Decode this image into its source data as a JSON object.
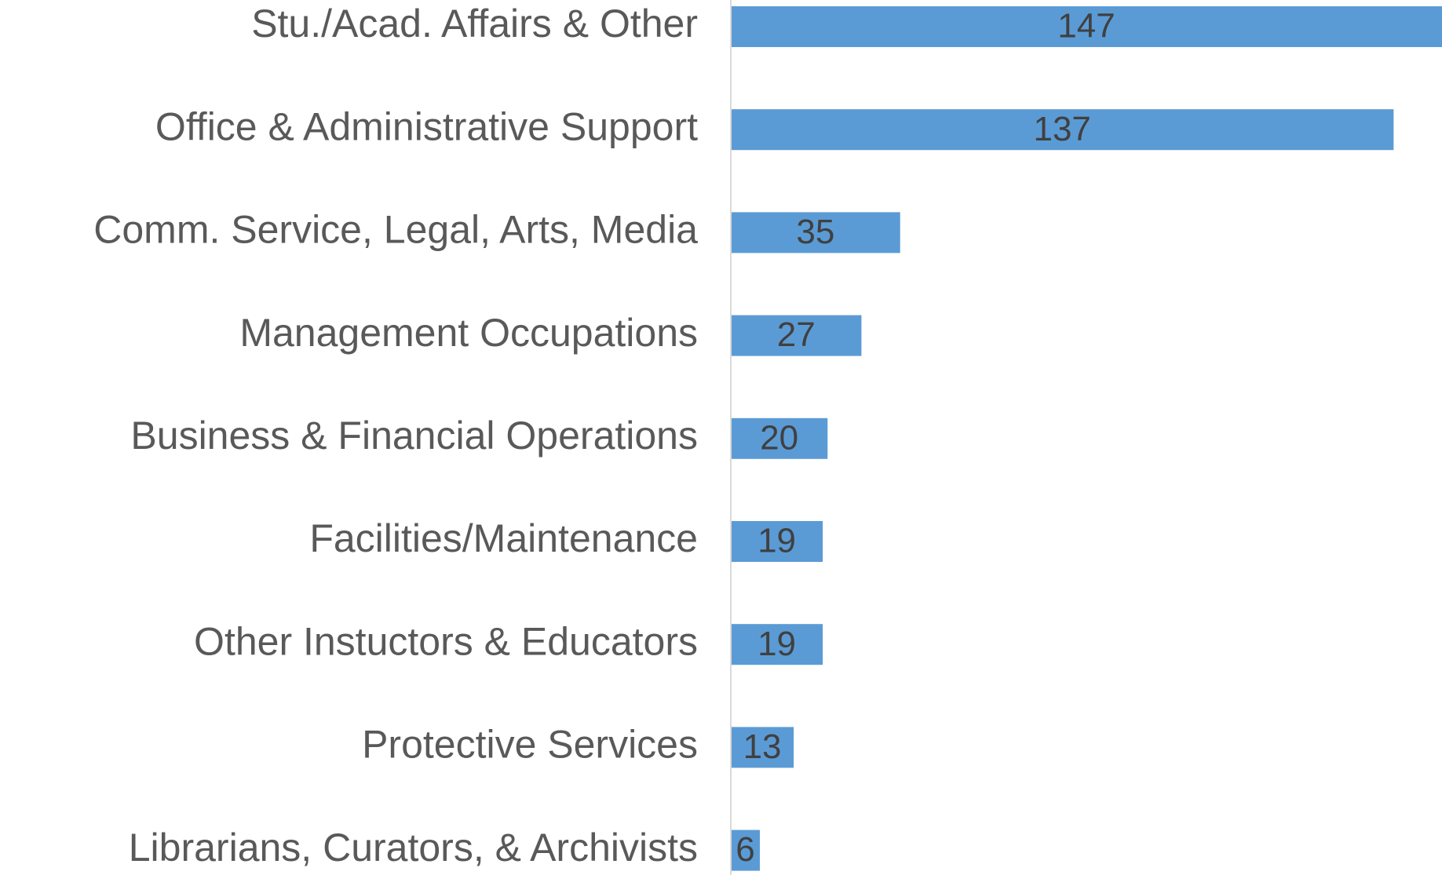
{
  "chart_data": {
    "type": "bar",
    "orientation": "horizontal",
    "categories": [
      "Stu./Acad. Affairs & Other",
      "Office & Administrative Support",
      "Comm. Service, Legal, Arts, Media",
      "Management Occupations",
      "Business & Financial Operations",
      "Facilities/Maintenance",
      "Other Instuctors & Educators",
      "Protective Services",
      "Librarians, Curators, & Archivists"
    ],
    "values": [
      147,
      137,
      35,
      27,
      20,
      19,
      19,
      13,
      6
    ],
    "color": "#5b9bd5"
  }
}
